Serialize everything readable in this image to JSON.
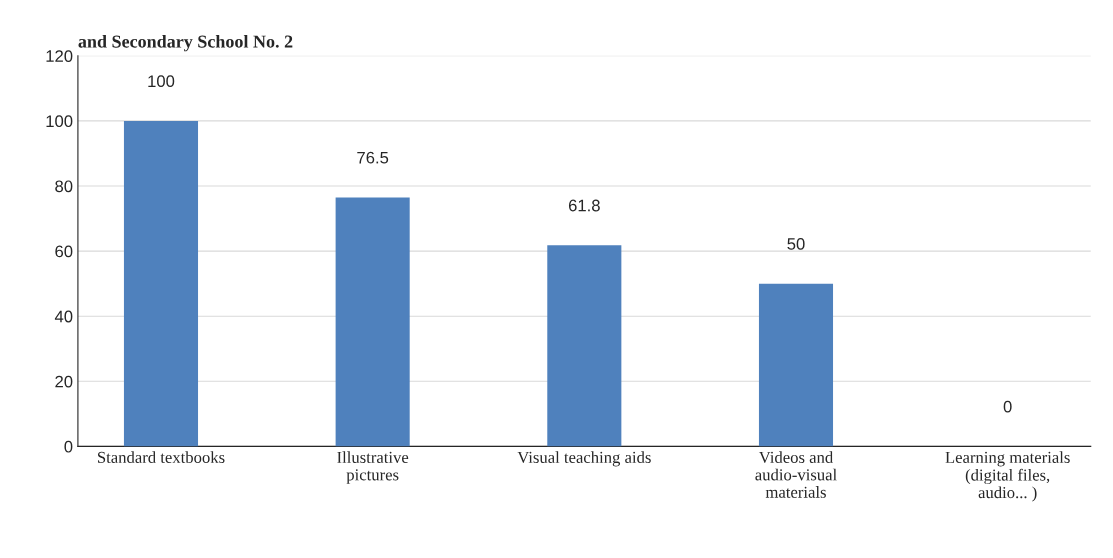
{
  "chart_data": {
    "type": "bar",
    "title": "and Secondary School No. 2",
    "categories": [
      "Standard textbooks",
      "Illustrative pictures",
      "Visual teaching aids",
      "Videos and audio-visual materials",
      "Learning materials (digital files, audio... )"
    ],
    "values": [
      100,
      76.5,
      61.8,
      50,
      0
    ],
    "color": "#4f81bd",
    "ylim": [
      0,
      120
    ],
    "yticks": [
      0,
      20,
      40,
      60,
      80,
      100,
      120
    ],
    "grid": "y",
    "data_labels": true
  }
}
